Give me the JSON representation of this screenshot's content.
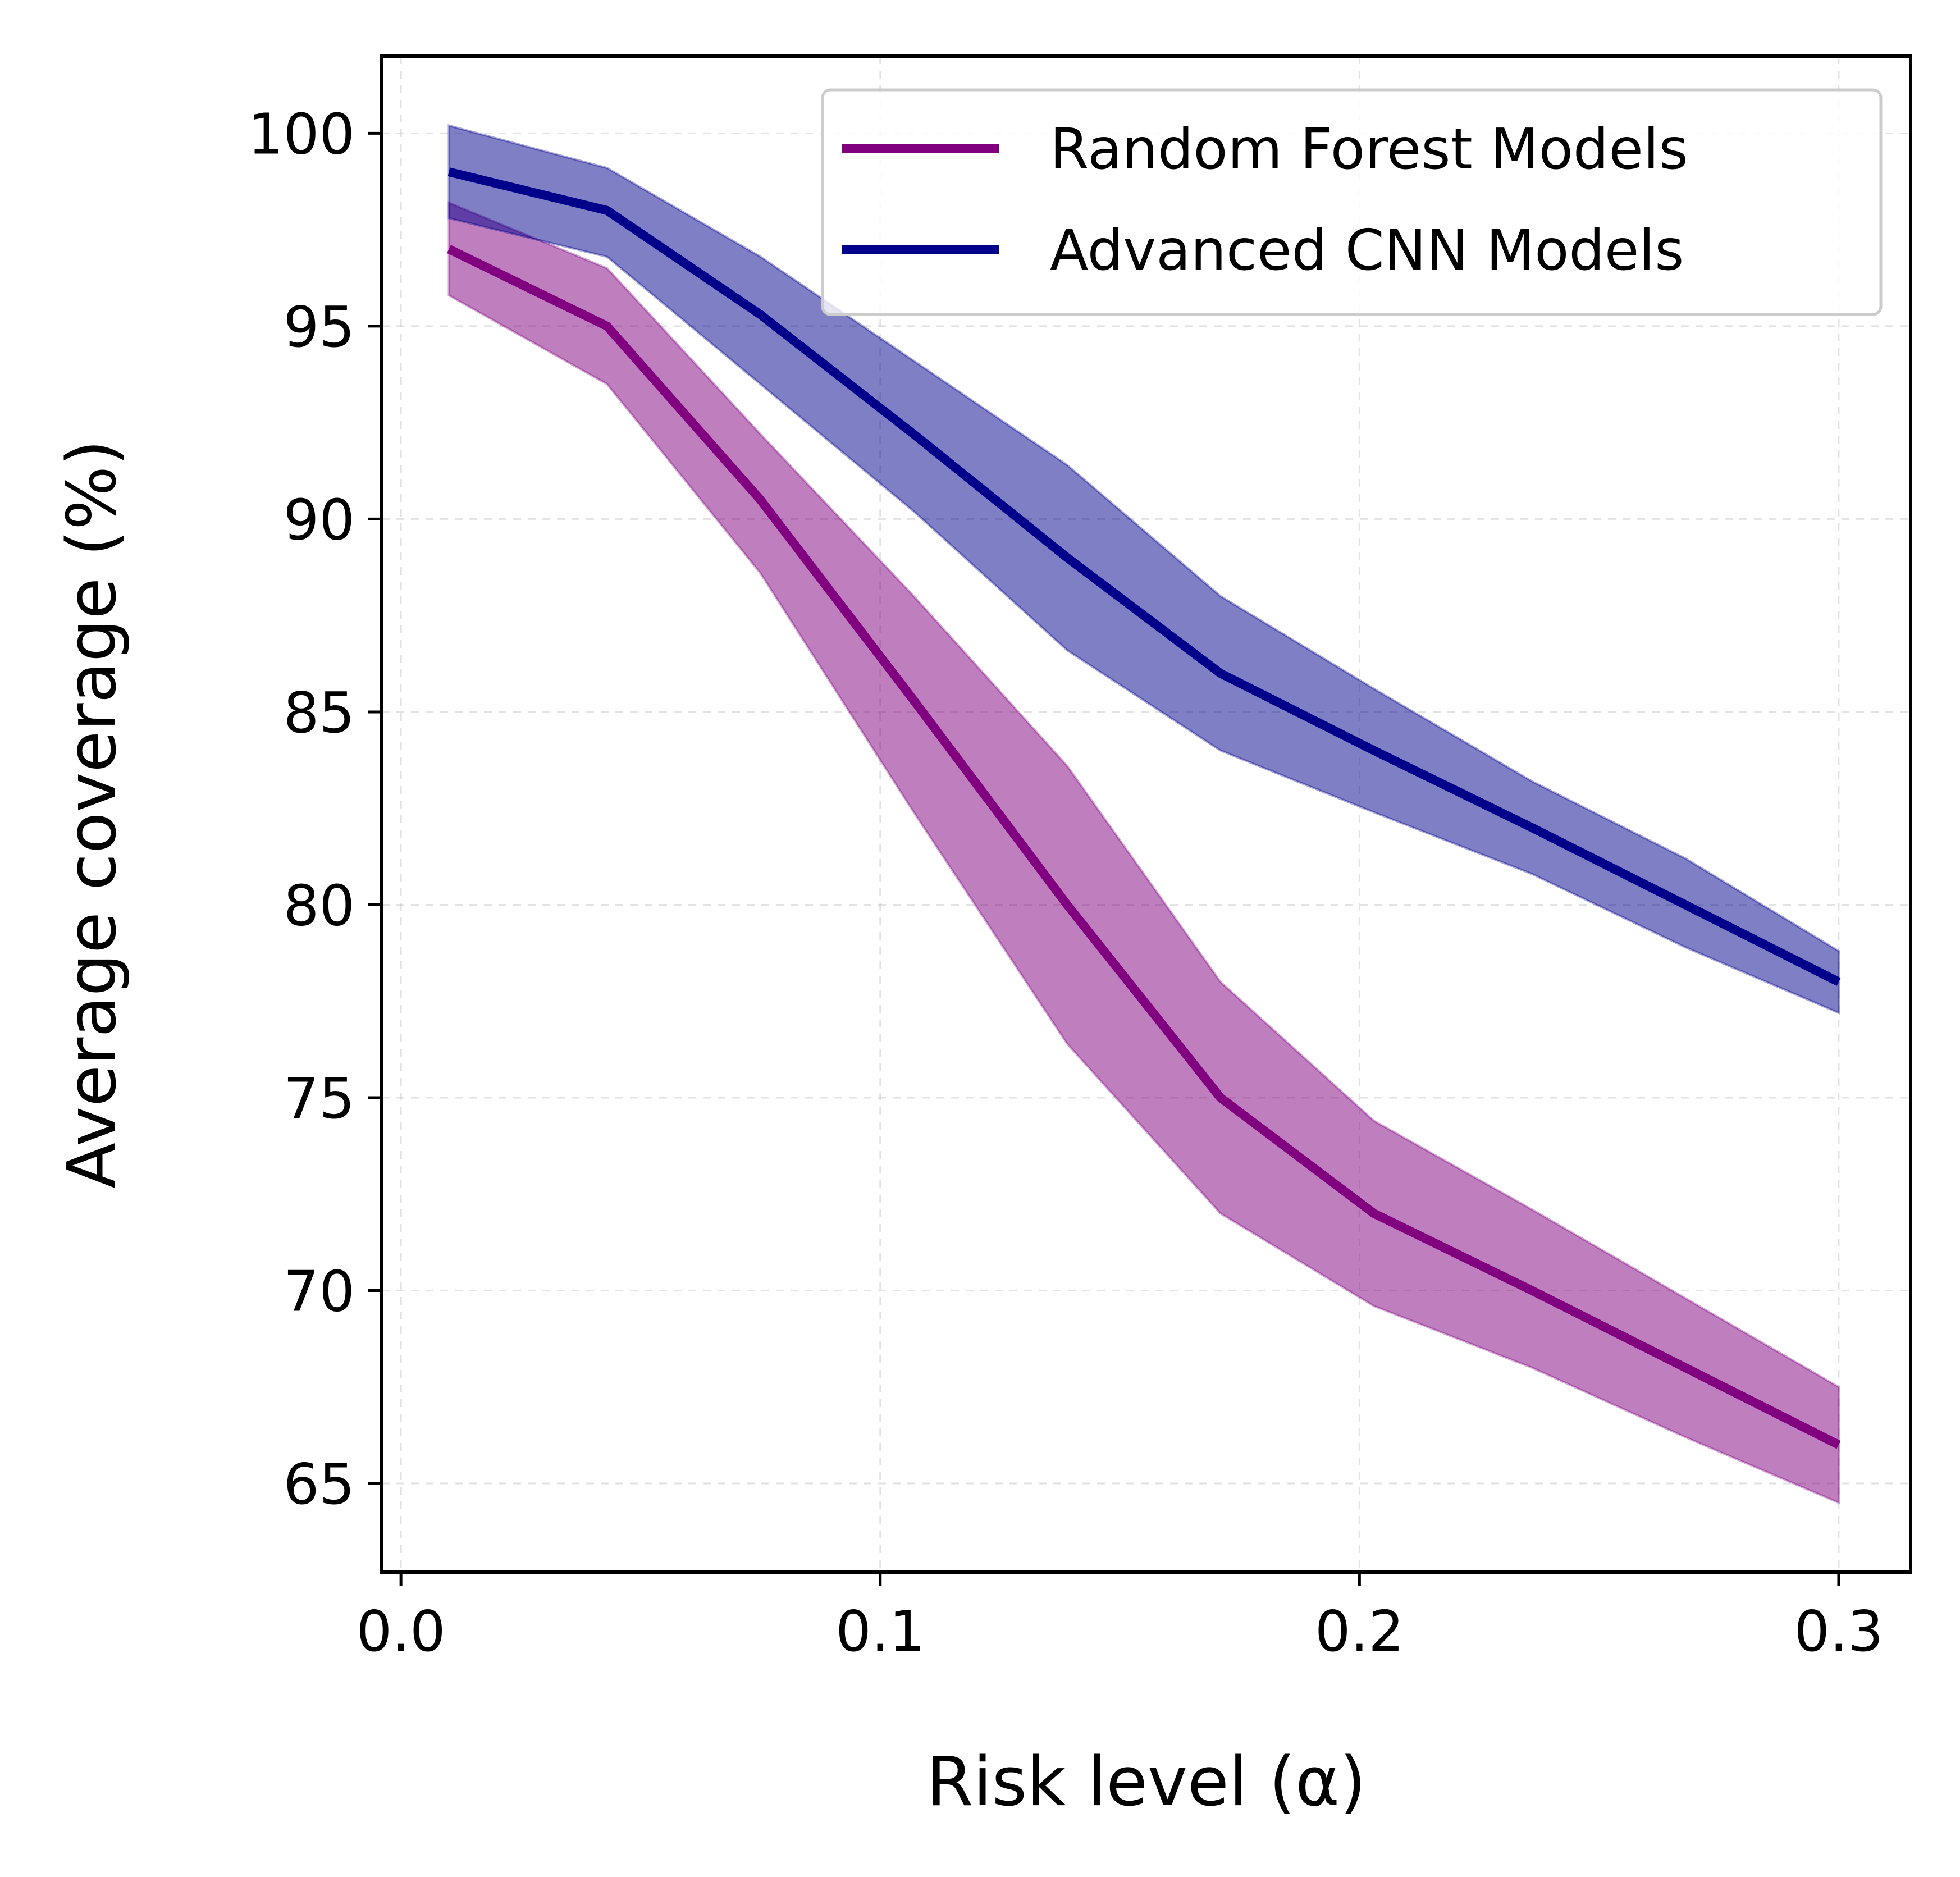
{
  "chart_data": {
    "type": "line",
    "title": "",
    "xlabel": "Risk level (α)",
    "ylabel": "Average coverage (%)",
    "xlim": [
      -0.004,
      0.315
    ],
    "ylim": [
      62.7,
      102.0
    ],
    "x_ticks": [
      0.0,
      0.1,
      0.2,
      0.3
    ],
    "x_tick_labels": [
      "0.0",
      "0.1",
      "0.2",
      "0.3"
    ],
    "y_ticks": [
      65,
      70,
      75,
      80,
      85,
      90,
      95,
      100
    ],
    "y_tick_labels": [
      "65",
      "70",
      "75",
      "80",
      "85",
      "90",
      "95",
      "100"
    ],
    "grid": true,
    "legend_position": "top-right",
    "series": [
      {
        "name": "Random Forest Models",
        "color": "#800080",
        "x": [
          0.01,
          0.043,
          0.075,
          0.107,
          0.139,
          0.171,
          0.203,
          0.236,
          0.268,
          0.3
        ],
        "y": [
          97.0,
          95.0,
          90.5,
          85.3,
          80.0,
          75.0,
          72.0,
          70.0,
          68.0,
          66.0
        ],
        "upper": [
          98.2,
          96.5,
          92.2,
          88.0,
          83.6,
          78.0,
          74.4,
          72.1,
          69.8,
          67.5
        ],
        "lower": [
          95.8,
          93.5,
          88.6,
          82.4,
          76.4,
          72.0,
          69.6,
          68.0,
          66.2,
          64.5
        ]
      },
      {
        "name": "Advanced CNN Models",
        "color": "#00008B",
        "x": [
          0.01,
          0.043,
          0.075,
          0.107,
          0.139,
          0.171,
          0.203,
          0.236,
          0.268,
          0.3
        ],
        "y": [
          99.0,
          98.0,
          95.3,
          92.2,
          89.0,
          86.0,
          84.0,
          82.0,
          80.0,
          78.0
        ],
        "upper": [
          100.2,
          99.1,
          96.8,
          94.1,
          91.4,
          88.0,
          85.6,
          83.2,
          81.2,
          78.8
        ],
        "lower": [
          97.8,
          96.8,
          93.5,
          90.2,
          86.6,
          84.0,
          82.4,
          80.8,
          78.9,
          77.2
        ]
      }
    ]
  }
}
